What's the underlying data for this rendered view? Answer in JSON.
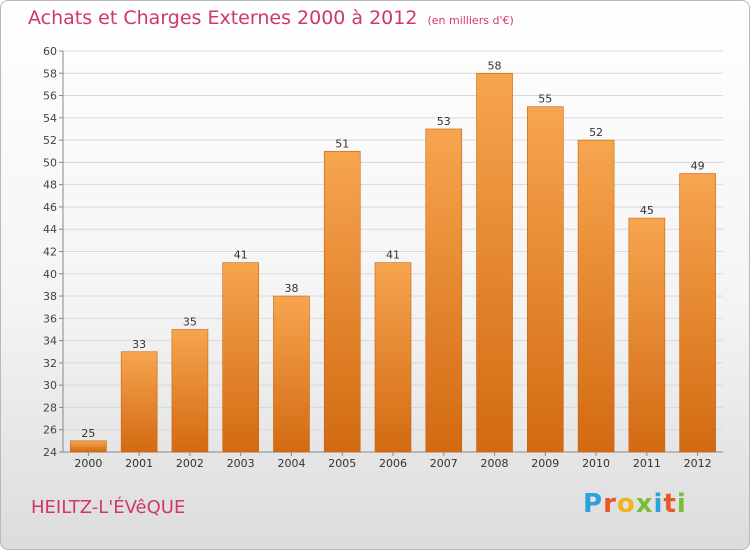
{
  "header": {
    "title": "Achats et Charges Externes 2000 à 2012",
    "subtitle": "(en milliers d'€)"
  },
  "footer": {
    "commune": "HEILTZ-L'ÉVêQUE",
    "logo_letters": [
      "P",
      "r",
      "o",
      "x",
      "i",
      "t",
      "i"
    ],
    "logo_colors": [
      "#2aa3d8",
      "#e8572a",
      "#f1b31c",
      "#7bbd35",
      "#2aa3d8",
      "#e8572a",
      "#7bbd35"
    ]
  },
  "chart_data": {
    "type": "bar",
    "categories": [
      "2000",
      "2001",
      "2002",
      "2003",
      "2004",
      "2005",
      "2006",
      "2007",
      "2008",
      "2009",
      "2010",
      "2011",
      "2012"
    ],
    "values": [
      25,
      33,
      35,
      41,
      38,
      51,
      41,
      53,
      58,
      55,
      52,
      45,
      49
    ],
    "title": "Achats et Charges Externes 2000 à 2012",
    "subtitle": "(en milliers d'€)",
    "ylim": [
      24,
      60
    ],
    "yticks": [
      24,
      26,
      28,
      30,
      32,
      34,
      36,
      38,
      40,
      42,
      44,
      46,
      48,
      50,
      52,
      54,
      56,
      58,
      60
    ],
    "grid": true,
    "colors": {
      "bar_light": "#f7a54f",
      "bar_dark": "#d26a12",
      "text": "#d1366a",
      "grid": "#d9d9d9"
    }
  }
}
